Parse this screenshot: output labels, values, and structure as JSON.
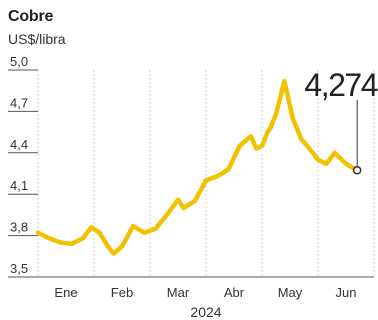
{
  "chart_data": {
    "type": "line",
    "title": "Cobre",
    "ylabel": "US$/libra",
    "xlabel": "2024",
    "ylim": [
      3.5,
      5.0
    ],
    "yticks": [
      "5,0",
      "4,7",
      "4,4",
      "4,1",
      "3,8",
      "3,5"
    ],
    "ytick_values": [
      5.0,
      4.7,
      4.4,
      4.1,
      3.8,
      3.5
    ],
    "months": [
      "Ene",
      "Feb",
      "Mar",
      "Abr",
      "May",
      "Jun"
    ],
    "x_range": [
      0,
      6
    ],
    "series": [
      {
        "color": "#f2c200",
        "x": [
          0.0,
          0.2,
          0.4,
          0.6,
          0.8,
          0.95,
          1.1,
          1.25,
          1.35,
          1.5,
          1.7,
          1.9,
          2.1,
          2.3,
          2.5,
          2.6,
          2.8,
          3.0,
          3.2,
          3.4,
          3.6,
          3.8,
          3.9,
          4.0,
          4.1,
          4.15,
          4.25,
          4.4,
          4.55,
          4.7,
          4.85,
          5.0,
          5.15,
          5.3,
          5.5,
          5.7
        ],
        "values": [
          3.82,
          3.78,
          3.75,
          3.74,
          3.78,
          3.86,
          3.82,
          3.72,
          3.67,
          3.72,
          3.87,
          3.82,
          3.85,
          3.95,
          4.06,
          4.0,
          4.05,
          4.2,
          4.23,
          4.28,
          4.45,
          4.52,
          4.43,
          4.45,
          4.55,
          4.58,
          4.68,
          4.92,
          4.65,
          4.5,
          4.43,
          4.35,
          4.32,
          4.4,
          4.32,
          4.274
        ]
      }
    ],
    "last_value_label": "4,274",
    "grid": "vertical"
  }
}
